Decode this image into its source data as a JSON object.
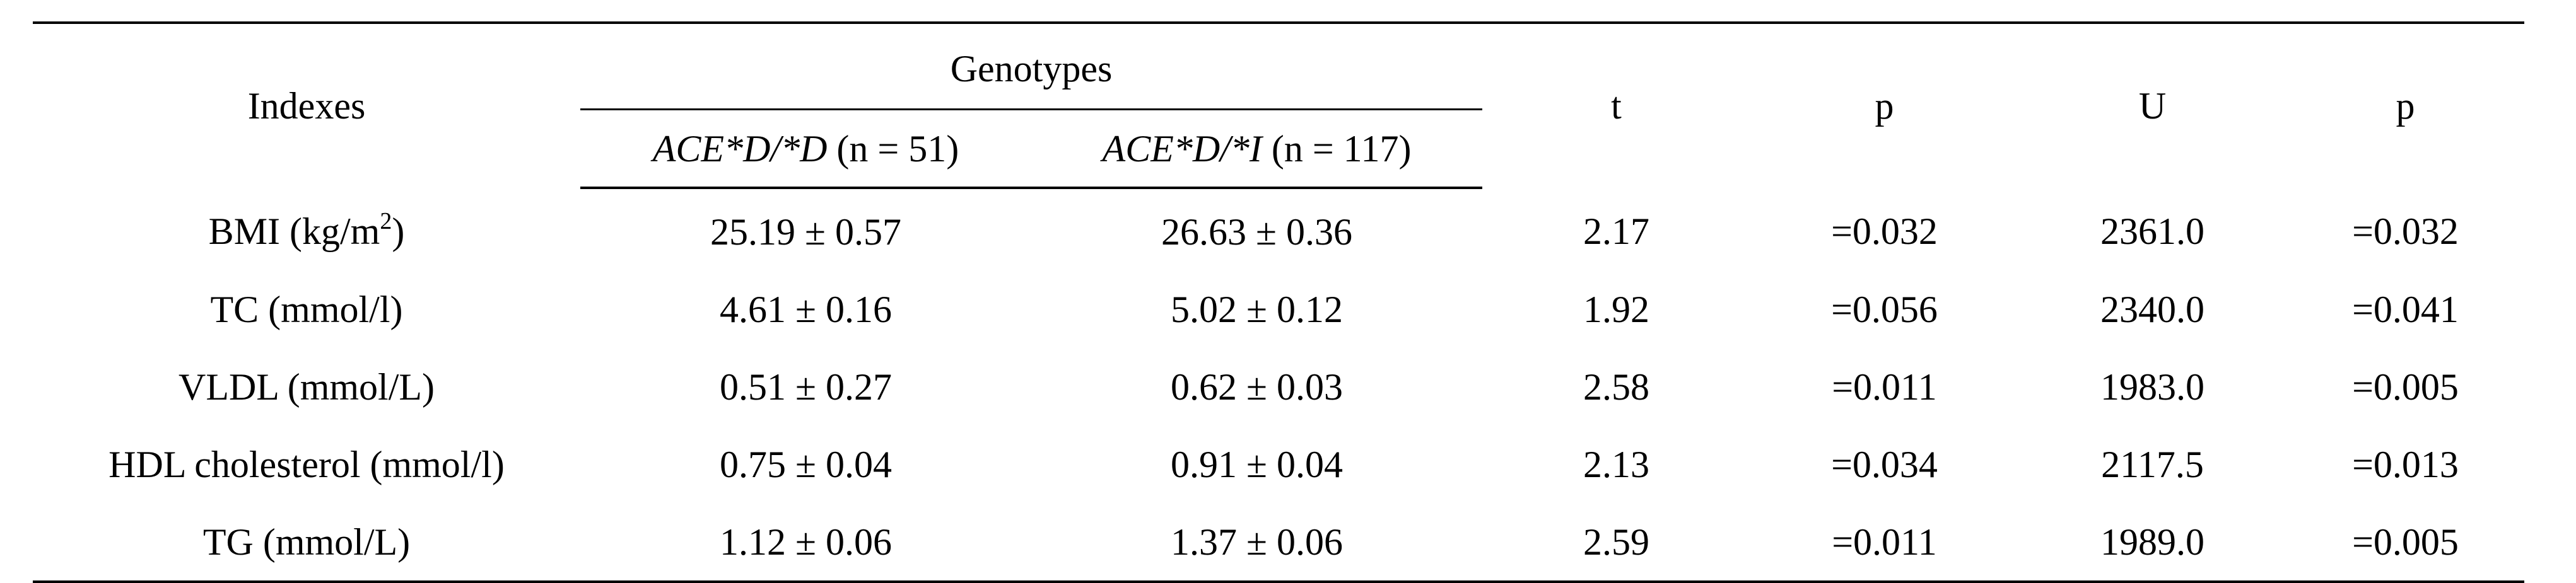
{
  "table": {
    "headers": {
      "indexes": "Indexes",
      "genotypes": "Genotypes",
      "genotype1_italic": "ACE*D/*D",
      "genotype1_n": " (n = 51)",
      "genotype2_italic": "ACE*D/*I",
      "genotype2_n": " (n = 117)",
      "t": "t",
      "p1": "p",
      "u": "U",
      "p2": "p"
    },
    "rows": [
      {
        "index": "BMI (kg/m",
        "index_sup": "2",
        "index_suffix": ")",
        "g1": "25.19 ± 0.57",
        "g2": "26.63 ± 0.36",
        "t": "2.17",
        "p1": "=0.032",
        "u": "2361.0",
        "p2": "=0.032"
      },
      {
        "index": "TC (mmol/l)",
        "g1": "4.61 ± 0.16",
        "g2": "5.02 ± 0.12",
        "t": "1.92",
        "p1": "=0.056",
        "u": "2340.0",
        "p2": "=0.041"
      },
      {
        "index": "VLDL (mmol/L)",
        "g1": "0.51 ± 0.27",
        "g2": "0.62 ± 0.03",
        "t": "2.58",
        "p1": "=0.011",
        "u": "1983.0",
        "p2": "=0.005"
      },
      {
        "index": "HDL cholesterol (mmol/l)",
        "g1": "0.75 ± 0.04",
        "g2": "0.91 ± 0.04",
        "t": "2.13",
        "p1": "=0.034",
        "u": "2117.5",
        "p2": "=0.013"
      },
      {
        "index": "TG (mmol/L)",
        "g1": "1.12 ± 0.06",
        "g2": "1.37 ± 0.06",
        "t": "2.59",
        "p1": "=0.011",
        "u": "1989.0",
        "p2": "=0.005"
      }
    ]
  }
}
